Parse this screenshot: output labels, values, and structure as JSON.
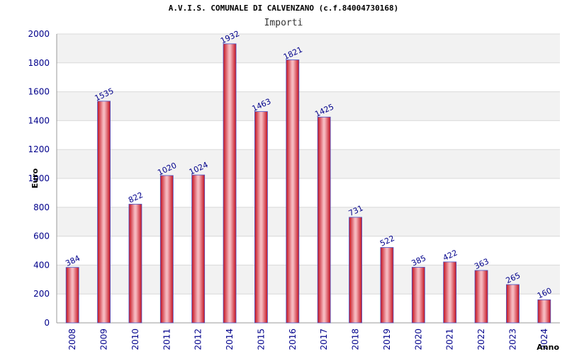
{
  "chart_data": {
    "type": "bar",
    "title": "A.V.I.S. COMUNALE DI CALVENZANO (c.f.84004730168)",
    "subtitle": "Importi",
    "xlabel": "Anno",
    "ylabel": "Euro",
    "categories": [
      "2008",
      "2009",
      "2010",
      "2011",
      "2012",
      "2014",
      "2015",
      "2016",
      "2017",
      "2018",
      "2019",
      "2020",
      "2021",
      "2022",
      "2023",
      "2024"
    ],
    "series": [
      {
        "values": [
          384,
          1535,
          822,
          1020,
          1024,
          1932,
          1463,
          1821,
          1425,
          731,
          522,
          385,
          422,
          363,
          265,
          160
        ]
      }
    ],
    "ylim": [
      0,
      2000
    ],
    "yticks": [
      0,
      200,
      400,
      600,
      800,
      1000,
      1200,
      1400,
      1600,
      1800,
      2000
    ],
    "grid": true,
    "colors": {
      "bar": "#e8283a",
      "bar_highlight": "#f8c8cc",
      "bar_edge": "#4a55c8",
      "band": "#f2f2f2",
      "grid": "#d9d9d9",
      "label": "#00008b"
    }
  }
}
